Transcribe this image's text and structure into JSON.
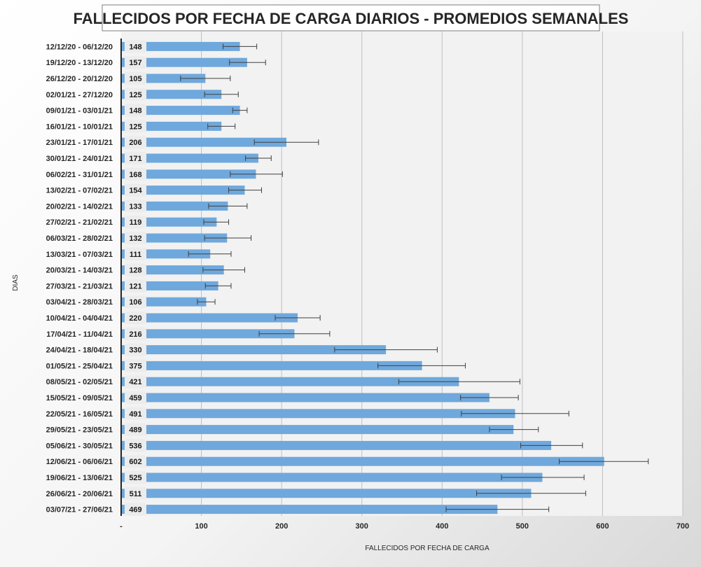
{
  "chart_data": {
    "type": "bar",
    "orientation": "horizontal",
    "title": "FALLECIDOS POR FECHA DE CARGA DIARIOS - PROMEDIOS SEMANALES",
    "xlabel": "FALLECIDOS POR FECHA DE CARGA",
    "ylabel": "DIAS",
    "xlim": [
      0,
      700
    ],
    "xticks": [
      0,
      100,
      200,
      300,
      400,
      500,
      600,
      700
    ],
    "xtick_labels": [
      "-",
      "100",
      "200",
      "300",
      "400",
      "500",
      "600",
      "700"
    ],
    "grid": true,
    "bar_color": "#6fa8dc",
    "categories": [
      "12/12/20 - 06/12/20",
      "19/12/20 - 13/12/20",
      "26/12/20 - 20/12/20",
      "02/01/21 - 27/12/20",
      "09/01/21 - 03/01/21",
      "16/01/21 - 10/01/21",
      "23/01/21 - 17/01/21",
      "30/01/21 - 24/01/21",
      "06/02/21 - 31/01/21",
      "13/02/21 - 07/02/21",
      "20/02/21 - 14/02/21",
      "27/02/21 - 21/02/21",
      "06/03/21 - 28/02/21",
      "13/03/21 - 07/03/21",
      "20/03/21 - 14/03/21",
      "27/03/21 - 21/03/21",
      "03/04/21 - 28/03/21",
      "10/04/21 - 04/04/21",
      "17/04/21 - 11/04/21",
      "24/04/21 - 18/04/21",
      "01/05/21 - 25/04/21",
      "08/05/21 - 02/05/21",
      "15/05/21 - 09/05/21",
      "22/05/21 - 16/05/21",
      "29/05/21 - 23/05/21",
      "05/06/21 - 30/05/21",
      "12/06/21 - 06/06/21",
      "19/06/21 - 13/06/21",
      "26/06/21 - 20/06/21",
      "03/07/21 - 27/06/21"
    ],
    "values": [
      148,
      157,
      105,
      125,
      148,
      125,
      206,
      171,
      168,
      154,
      133,
      119,
      132,
      111,
      128,
      121,
      106,
      220,
      216,
      330,
      375,
      421,
      459,
      491,
      489,
      536,
      602,
      525,
      511,
      469
    ],
    "data_labels": [
      "148",
      "157",
      "105",
      "125",
      "148",
      "125",
      "206",
      "171",
      "168",
      "154",
      "133",
      "119",
      "132",
      "111",
      "128",
      "121",
      "106",
      "220",
      "216",
      "330",
      "375",
      "421",
      "459",
      "491",
      "489",
      "536",
      "602",
      "525",
      "511",
      "469"
    ],
    "error_low": [
      127,
      135,
      74,
      104,
      139,
      108,
      166,
      155,
      136,
      134,
      109,
      103,
      104,
      84,
      102,
      105,
      95,
      192,
      172,
      266,
      320,
      346,
      423,
      424,
      459,
      498,
      546,
      474,
      443,
      405
    ],
    "error_high": [
      169,
      180,
      136,
      146,
      157,
      142,
      246,
      187,
      201,
      175,
      157,
      134,
      162,
      137,
      154,
      137,
      117,
      248,
      260,
      394,
      429,
      497,
      495,
      558,
      520,
      575,
      657,
      577,
      579,
      533
    ]
  }
}
